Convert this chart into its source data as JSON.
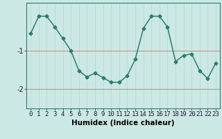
{
  "x": [
    0,
    1,
    2,
    3,
    4,
    5,
    6,
    7,
    8,
    9,
    10,
    11,
    12,
    13,
    14,
    15,
    16,
    17,
    18,
    19,
    20,
    21,
    22,
    23
  ],
  "y": [
    -0.55,
    -0.1,
    -0.1,
    -0.38,
    -0.68,
    -1.0,
    -1.52,
    -1.68,
    -1.58,
    -1.7,
    -1.82,
    -1.82,
    -1.65,
    -1.22,
    -0.42,
    -0.1,
    -0.1,
    -0.38,
    -1.28,
    -1.12,
    -1.08,
    -1.52,
    -1.72,
    -1.32
  ],
  "xlabel": "Humidex (Indice chaleur)",
  "xlim": [
    -0.5,
    23.5
  ],
  "ylim": [
    -2.5,
    0.25
  ],
  "yticks": [
    -2,
    -1
  ],
  "ytick_labels": [
    "-2",
    "-1"
  ],
  "bg_color": "#cce8e4",
  "line_color": "#2d7a6e",
  "vgrid_color": "#bbd8d4",
  "hgrid_color": "#d08080",
  "marker": "D",
  "markersize": 2.5,
  "linewidth": 1.1,
  "xlabel_fontsize": 7.5,
  "tick_fontsize": 6.5
}
